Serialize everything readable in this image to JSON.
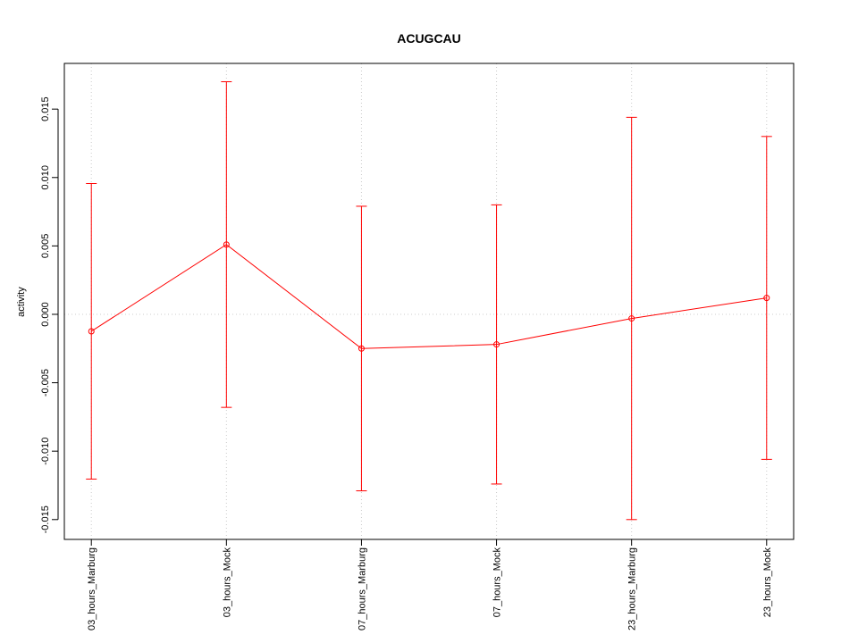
{
  "chart_data": {
    "type": "line",
    "title": "ACUGCAU",
    "y_label": "activity",
    "categories": [
      "03_hours_Marburg",
      "03_hours_Mock",
      "07_hours_Marburg",
      "07_hours_Mock",
      "23_hours_Marburg",
      "23_hours_Mock"
    ],
    "series": [
      {
        "color": "#ff0000",
        "values": [
          -0.00124,
          0.0051,
          -0.0025,
          -0.0022,
          -0.0003,
          0.0012
        ],
        "errors": [
          0.0108,
          0.0119,
          0.0104,
          0.0102,
          0.0147,
          0.0118
        ]
      }
    ],
    "ylim": [
      -0.01645,
      0.01834
    ],
    "yticks": [
      -0.015,
      {
        "value": -0.01,
        "label": "-0.010"
      },
      -0.005,
      {
        "value": 0,
        "label": "0.000"
      },
      0.005,
      {
        "value": 0.01,
        "label": "0.010"
      },
      0.015
    ],
    "grid": true,
    "reference_line": 0
  }
}
